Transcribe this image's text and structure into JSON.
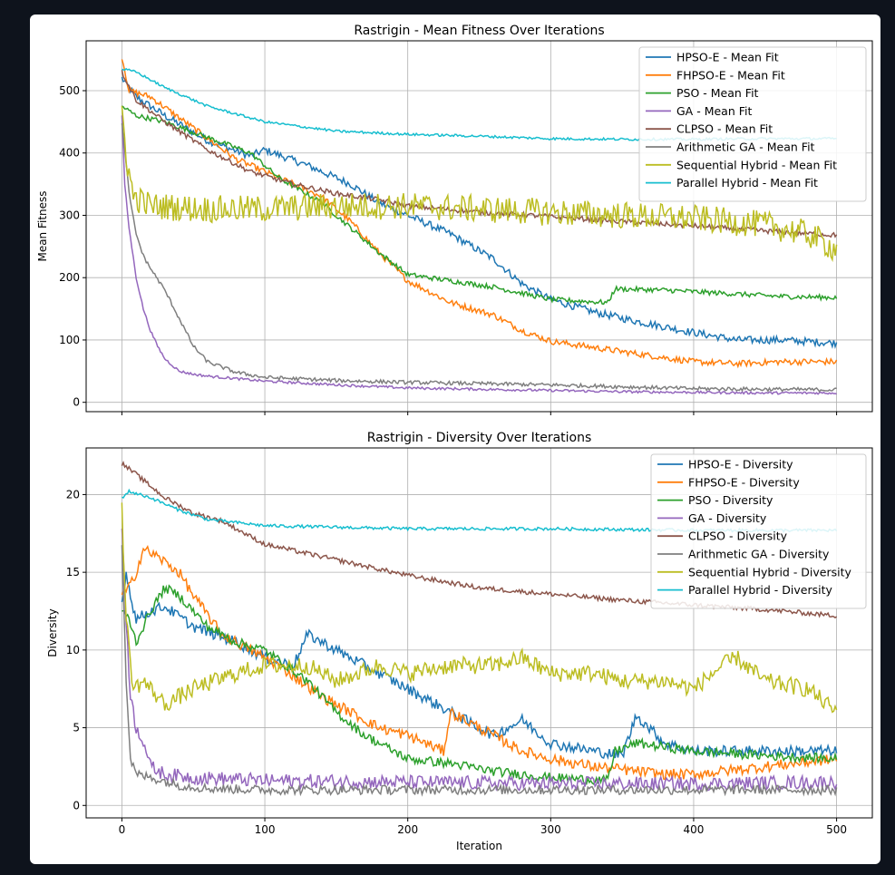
{
  "chart_data": [
    {
      "type": "line",
      "title": "Rastrigin - Mean Fitness Over Iterations",
      "xlabel": "",
      "ylabel": "Mean Fitness",
      "xlim": [
        -25,
        525
      ],
      "ylim": [
        -15,
        580
      ],
      "xticks": [
        0,
        100,
        200,
        300,
        400,
        500
      ],
      "yticks": [
        0,
        100,
        200,
        300,
        400,
        500
      ],
      "show_x_tick_labels": false,
      "grid": true,
      "legend_position": "top-right",
      "series": [
        {
          "name": "HPSO-E - Mean Fit",
          "color": "#1f77b4",
          "x": [
            0,
            10,
            30,
            60,
            90,
            100,
            130,
            160,
            180,
            200,
            230,
            260,
            280,
            300,
            330,
            360,
            400,
            430,
            460,
            500
          ],
          "y": [
            520,
            490,
            460,
            420,
            395,
            405,
            380,
            350,
            320,
            300,
            270,
            230,
            190,
            165,
            145,
            130,
            112,
            100,
            100,
            95
          ],
          "noise": 6
        },
        {
          "name": "FHPSO-E - Mean Fit",
          "color": "#ff7f0e",
          "x": [
            0,
            5,
            20,
            50,
            80,
            110,
            140,
            160,
            180,
            200,
            230,
            260,
            280,
            300,
            330,
            360,
            400,
            430,
            460,
            500
          ],
          "y": [
            555,
            500,
            490,
            440,
            390,
            360,
            330,
            290,
            240,
            195,
            160,
            140,
            115,
            98,
            88,
            78,
            65,
            62,
            65,
            65
          ],
          "noise": 5
        },
        {
          "name": "PSO - Mean Fit",
          "color": "#2ca02c",
          "x": [
            0,
            10,
            30,
            60,
            90,
            110,
            140,
            160,
            180,
            200,
            230,
            260,
            280,
            300,
            340,
            345,
            380,
            420,
            460,
            500
          ],
          "y": [
            475,
            460,
            450,
            425,
            400,
            360,
            320,
            280,
            240,
            205,
            195,
            185,
            175,
            165,
            160,
            182,
            180,
            175,
            170,
            168
          ],
          "noise": 4
        },
        {
          "name": "GA - Mean Fit",
          "color": "#9467bd",
          "x": [
            0,
            2,
            5,
            10,
            15,
            20,
            25,
            30,
            40,
            50,
            60,
            80,
            100,
            150,
            200,
            250,
            300,
            350,
            400,
            450,
            500
          ],
          "y": [
            460,
            350,
            280,
            200,
            150,
            115,
            90,
            70,
            50,
            45,
            42,
            38,
            34,
            28,
            23,
            21,
            19,
            17,
            16,
            15,
            15
          ],
          "noise": 2
        },
        {
          "name": "CLPSO - Mean Fit",
          "color": "#8c564b",
          "x": [
            0,
            10,
            30,
            60,
            90,
            120,
            150,
            180,
            200,
            250,
            300,
            350,
            400,
            450,
            500
          ],
          "y": [
            530,
            485,
            450,
            405,
            370,
            350,
            335,
            325,
            315,
            305,
            298,
            290,
            283,
            275,
            268
          ],
          "noise": 4
        },
        {
          "name": "Arithmetic GA - Mean Fit",
          "color": "#7f7f7f",
          "x": [
            0,
            3,
            6,
            10,
            15,
            20,
            30,
            40,
            50,
            60,
            80,
            100,
            150,
            200,
            300,
            400,
            500
          ],
          "y": [
            450,
            380,
            320,
            270,
            235,
            215,
            180,
            135,
            90,
            65,
            48,
            40,
            35,
            32,
            28,
            22,
            20
          ],
          "noise": 3
        },
        {
          "name": "Sequential Hybrid - Mean Fit",
          "color": "#bcbd22",
          "x": [
            0,
            4,
            8,
            20,
            60,
            100,
            150,
            200,
            250,
            300,
            350,
            400,
            450,
            480,
            500
          ],
          "y": [
            470,
            380,
            330,
            315,
            310,
            310,
            315,
            315,
            310,
            305,
            300,
            295,
            285,
            270,
            245
          ],
          "noise": 22
        },
        {
          "name": "Parallel Hybrid - Mean Fit",
          "color": "#17becf",
          "x": [
            0,
            10,
            30,
            60,
            100,
            150,
            200,
            250,
            300,
            350,
            400,
            450,
            500
          ],
          "y": [
            535,
            530,
            505,
            475,
            450,
            435,
            430,
            427,
            423,
            422,
            422,
            423,
            423
          ],
          "noise": 2
        }
      ]
    },
    {
      "type": "line",
      "title": "Rastrigin - Diversity Over Iterations",
      "xlabel": "Iteration",
      "ylabel": "Diversity",
      "xlim": [
        -25,
        525
      ],
      "ylim": [
        -0.8,
        23
      ],
      "xticks": [
        0,
        100,
        200,
        300,
        400,
        500
      ],
      "yticks": [
        0,
        5,
        10,
        15,
        20
      ],
      "show_x_tick_labels": true,
      "grid": true,
      "legend_position": "top-right",
      "series": [
        {
          "name": "HPSO-E - Diversity",
          "color": "#1f77b4",
          "x": [
            0,
            3,
            6,
            10,
            20,
            30,
            50,
            80,
            100,
            120,
            130,
            150,
            180,
            200,
            230,
            260,
            280,
            300,
            330,
            350,
            360,
            380,
            400,
            450,
            500
          ],
          "y": [
            13,
            15,
            13.5,
            12,
            12.5,
            12.8,
            11.5,
            10.5,
            9.5,
            9,
            11,
            10,
            8.5,
            7.5,
            6,
            4.5,
            5.5,
            4,
            3.5,
            3.2,
            5.8,
            4,
            3.5,
            3.5,
            3.5
          ],
          "noise": 0.35
        },
        {
          "name": "FHPSO-E - Diversity",
          "color": "#ff7f0e",
          "x": [
            0,
            5,
            10,
            15,
            25,
            40,
            50,
            70,
            90,
            110,
            140,
            160,
            180,
            200,
            225,
            230,
            250,
            280,
            300,
            330,
            350,
            380,
            400,
            450,
            500
          ],
          "y": [
            13.5,
            14,
            15,
            16.5,
            16,
            15,
            13.5,
            11,
            10,
            9,
            7,
            6,
            5,
            4.5,
            3.5,
            6,
            5,
            3.5,
            3,
            2.5,
            2.3,
            2,
            2,
            2.5,
            3
          ],
          "noise": 0.35
        },
        {
          "name": "PSO - Diversity",
          "color": "#2ca02c",
          "x": [
            0,
            5,
            10,
            20,
            30,
            40,
            60,
            80,
            100,
            130,
            150,
            170,
            200,
            230,
            260,
            300,
            340,
            345,
            360,
            400,
            450,
            500
          ],
          "y": [
            12.5,
            12,
            10.5,
            12.5,
            14,
            13.5,
            11.5,
            10.5,
            10,
            8,
            6,
            4.5,
            3,
            2.7,
            2.2,
            1.8,
            1.6,
            3.5,
            4,
            3.5,
            3.2,
            3
          ],
          "noise": 0.3
        },
        {
          "name": "GA - Diversity",
          "color": "#9467bd",
          "x": [
            0,
            3,
            6,
            10,
            15,
            20,
            30,
            50,
            100,
            200,
            300,
            400,
            500
          ],
          "y": [
            18,
            12,
            7,
            5,
            4.2,
            2.5,
            2,
            1.8,
            1.6,
            1.5,
            1.4,
            1.4,
            1.5
          ],
          "noise": 0.45
        },
        {
          "name": "CLPSO - Diversity",
          "color": "#8c564b",
          "x": [
            0,
            10,
            30,
            50,
            70,
            100,
            150,
            200,
            250,
            300,
            350,
            400,
            450,
            500
          ],
          "y": [
            22,
            21.3,
            19.8,
            18.8,
            18.3,
            16.8,
            15.8,
            14.8,
            14,
            13.6,
            13.2,
            12.9,
            12.6,
            12.2
          ],
          "noise": 0.15
        },
        {
          "name": "Arithmetic GA - Diversity",
          "color": "#7f7f7f",
          "x": [
            0,
            3,
            6,
            10,
            20,
            40,
            60,
            100,
            200,
            300,
            400,
            500
          ],
          "y": [
            17,
            8,
            3,
            2,
            1.8,
            1.3,
            1.1,
            1,
            1,
            1,
            1,
            1
          ],
          "noise": 0.3
        },
        {
          "name": "Sequential Hybrid - Diversity",
          "color": "#bcbd22",
          "x": [
            0,
            3,
            8,
            15,
            30,
            50,
            80,
            100,
            130,
            150,
            180,
            200,
            230,
            260,
            280,
            300,
            330,
            350,
            380,
            400,
            420,
            430,
            450,
            480,
            500
          ],
          "y": [
            19,
            12,
            7.5,
            8,
            6.5,
            7.5,
            8.5,
            9,
            9,
            8,
            9,
            8.5,
            9,
            9,
            9.5,
            8.5,
            8.5,
            8,
            8,
            7.5,
            9,
            9.5,
            8,
            7.5,
            6
          ],
          "noise": 0.55
        },
        {
          "name": "Parallel Hybrid - Diversity",
          "color": "#17becf",
          "x": [
            0,
            5,
            20,
            40,
            60,
            80,
            100,
            150,
            200,
            300,
            400,
            500
          ],
          "y": [
            19.8,
            20.2,
            19.8,
            19,
            18.4,
            18.2,
            18,
            17.9,
            17.8,
            17.8,
            17.7,
            17.7
          ],
          "noise": 0.1
        }
      ]
    }
  ]
}
